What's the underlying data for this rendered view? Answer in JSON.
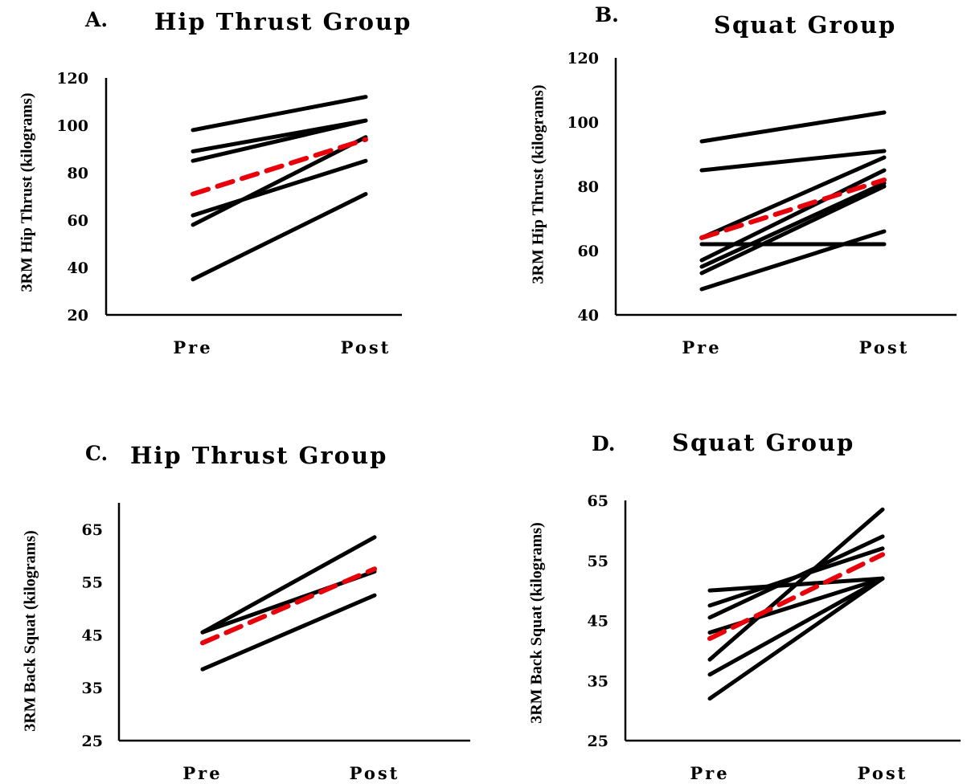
{
  "chart_data": [
    {
      "panel": "A.",
      "title": "Hip Thrust Group",
      "type": "line",
      "ylabel": "3RM Hip Thrust (kilograms)",
      "categories": [
        "Pre",
        "Post"
      ],
      "yticks": [
        20,
        40,
        60,
        80,
        100,
        120
      ],
      "ylim": [
        20,
        120
      ],
      "series": [
        {
          "values": [
            98,
            112
          ]
        },
        {
          "values": [
            89,
            102
          ]
        },
        {
          "values": [
            85,
            102
          ]
        },
        {
          "values": [
            62,
            85
          ]
        },
        {
          "values": [
            58,
            95
          ]
        },
        {
          "values": [
            35,
            71
          ]
        },
        {
          "values": [
            71,
            94
          ],
          "style": "mean"
        }
      ]
    },
    {
      "panel": "B.",
      "title": "Squat Group",
      "type": "line",
      "ylabel": "3RM Hip Thrust (kilograms)",
      "categories": [
        "Pre",
        "Post"
      ],
      "yticks": [
        40,
        60,
        80,
        100,
        120
      ],
      "ylim": [
        40,
        120
      ],
      "series": [
        {
          "values": [
            94,
            103
          ]
        },
        {
          "values": [
            85,
            91
          ]
        },
        {
          "values": [
            64,
            89
          ]
        },
        {
          "values": [
            57,
            85
          ]
        },
        {
          "values": [
            55,
            81
          ]
        },
        {
          "values": [
            53,
            80
          ]
        },
        {
          "values": [
            62,
            62
          ]
        },
        {
          "values": [
            48,
            66
          ]
        },
        {
          "values": [
            64,
            82
          ],
          "style": "mean"
        }
      ]
    },
    {
      "panel": "C.",
      "title": "Hip Thrust Group",
      "type": "line",
      "ylabel": "3RM Back Squat (kilograms)",
      "categories": [
        "Pre",
        "Post"
      ],
      "yticks": [
        25,
        35,
        45,
        55,
        65
      ],
      "ylim": [
        25,
        70
      ],
      "series": [
        {
          "values": [
            45.5,
            63.5
          ]
        },
        {
          "values": [
            45.5,
            57
          ]
        },
        {
          "values": [
            38.5,
            52.5
          ]
        },
        {
          "values": [
            43.5,
            57.5
          ],
          "style": "mean"
        }
      ]
    },
    {
      "panel": "D.",
      "title": "Squat Group",
      "type": "line",
      "ylabel": "3RM Back Squat (kilograms)",
      "categories": [
        "Pre",
        "Post"
      ],
      "yticks": [
        25,
        35,
        45,
        55,
        65
      ],
      "ylim": [
        25,
        65
      ],
      "series": [
        {
          "values": [
            50,
            52
          ]
        },
        {
          "values": [
            47.5,
            57
          ]
        },
        {
          "values": [
            45.5,
            59
          ]
        },
        {
          "values": [
            43,
            52
          ]
        },
        {
          "values": [
            38.5,
            63.5
          ]
        },
        {
          "values": [
            36,
            52
          ]
        },
        {
          "values": [
            32,
            52
          ]
        },
        {
          "values": [
            42,
            56
          ],
          "style": "mean"
        }
      ]
    }
  ],
  "colors": {
    "individual": "#000000",
    "mean": "#e8000b"
  }
}
